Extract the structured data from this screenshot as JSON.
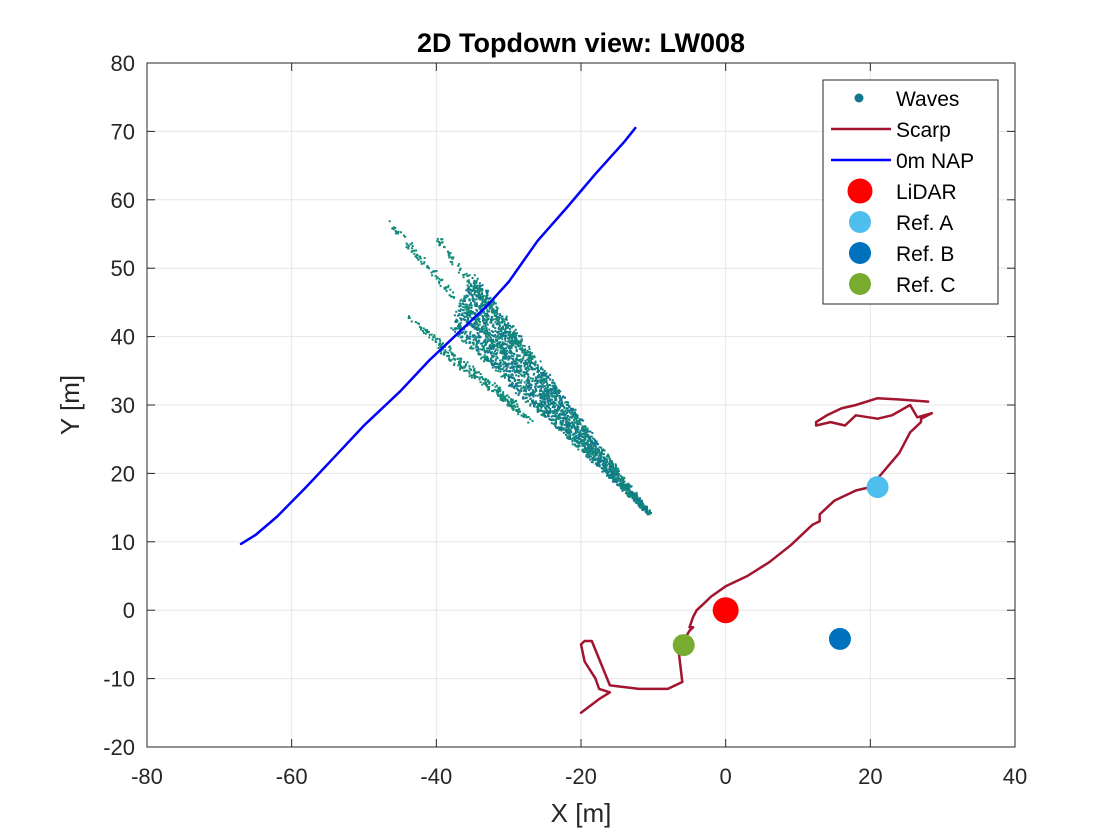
{
  "chart_data": {
    "type": "scatter",
    "title": "2D Topdown view: LW008",
    "xlabel": "X [m]",
    "ylabel": "Y [m]",
    "xlim": [
      -80,
      40
    ],
    "ylim": [
      -20,
      80
    ],
    "xticks": [
      -80,
      -60,
      -40,
      -20,
      0,
      20,
      40
    ],
    "yticks": [
      -20,
      -10,
      0,
      10,
      20,
      30,
      40,
      50,
      60,
      70,
      80
    ],
    "xtick_labels": [
      "-80",
      "-60",
      "-40",
      "-20",
      "0",
      "20",
      "40"
    ],
    "ytick_labels": [
      "-20",
      "-10",
      "0",
      "10",
      "20",
      "30",
      "40",
      "50",
      "60",
      "70",
      "80"
    ],
    "grid": true,
    "legend_position": "top-right",
    "legend_labels": {
      "waves": "Waves",
      "scarp": "Scarp",
      "nap": "0m NAP",
      "lidar": "LiDAR",
      "refA": "Ref. A",
      "refB": "Ref. B",
      "refC": "Ref. C"
    },
    "colors": {
      "waves_a": "#0f8a78",
      "waves_b": "#11768e",
      "scarp": "#a2142f",
      "nap": "#0000ff",
      "lidar": "#ff0000",
      "refA": "#4dbeee",
      "refB": "#0072bd",
      "refC": "#77ac30",
      "grid": "#e6e6e6",
      "axis": "#262626"
    },
    "series": [
      {
        "name": "Scarp",
        "kind": "line",
        "x": [
          -20,
          -17.5,
          -16,
          -17.5,
          -18,
          -19.5,
          -20,
          -19.5,
          -18.5,
          -16,
          -12,
          -8,
          -6,
          -6.5,
          -6,
          -5,
          -4.5,
          -5,
          -4.5,
          -4,
          -3,
          -2,
          0,
          3,
          6,
          9,
          12,
          13,
          13,
          15,
          18,
          20,
          22,
          24,
          25.5,
          27,
          27,
          28.5,
          26.5,
          25.5,
          23,
          21,
          18,
          16.5,
          14.5,
          12.5,
          12.5,
          14,
          16,
          18,
          21,
          24,
          28
        ],
        "y": [
          -15,
          -13,
          -12,
          -11.5,
          -10,
          -7.5,
          -5,
          -4.5,
          -4.5,
          -11,
          -11.5,
          -11.5,
          -10.5,
          -6,
          -4.8,
          -3,
          -2.5,
          -2.5,
          -1,
          0,
          1,
          2,
          3.5,
          5,
          7,
          9.5,
          12.5,
          13,
          14,
          16,
          17.5,
          18,
          20.5,
          23,
          26,
          27.5,
          28,
          28.8,
          28.2,
          30,
          28.5,
          28,
          28.5,
          27,
          27.5,
          27,
          27.5,
          28.5,
          29.5,
          30,
          31,
          30.8,
          30.5
        ]
      },
      {
        "name": "0m NAP",
        "kind": "line",
        "x": [
          -67,
          -65,
          -62,
          -58,
          -54,
          -50,
          -49,
          -45,
          -41,
          -37,
          -33,
          -30,
          -26,
          -22,
          -18,
          -14,
          -12.5
        ],
        "y": [
          9.7,
          11,
          13.7,
          18,
          22.5,
          27,
          28,
          32,
          36.5,
          40.5,
          44.5,
          48,
          54,
          58.8,
          63.8,
          68.5,
          70.5
        ]
      },
      {
        "name": "Waves",
        "kind": "scatter",
        "fan_apex": [
          -10.5,
          14
        ],
        "fan_edges": [
          [
            -46.5,
            56.5
          ],
          [
            -40,
            54.5
          ],
          [
            -44,
            43
          ],
          [
            -40,
            38.5
          ]
        ],
        "dense_edges": [
          [
            -35,
            49.5
          ],
          [
            -38,
            41
          ]
        ],
        "extent_x": [
          -47,
          -10
        ],
        "extent_y": [
          12.5,
          56.5
        ]
      },
      {
        "name": "LiDAR",
        "kind": "marker",
        "x": [
          0
        ],
        "y": [
          0
        ]
      },
      {
        "name": "Ref. A",
        "kind": "marker",
        "x": [
          21
        ],
        "y": [
          18
        ]
      },
      {
        "name": "Ref. B",
        "kind": "marker",
        "x": [
          15.8
        ],
        "y": [
          -4.2
        ]
      },
      {
        "name": "Ref. C",
        "kind": "marker",
        "x": [
          -5.8
        ],
        "y": [
          -5.1
        ]
      }
    ]
  }
}
